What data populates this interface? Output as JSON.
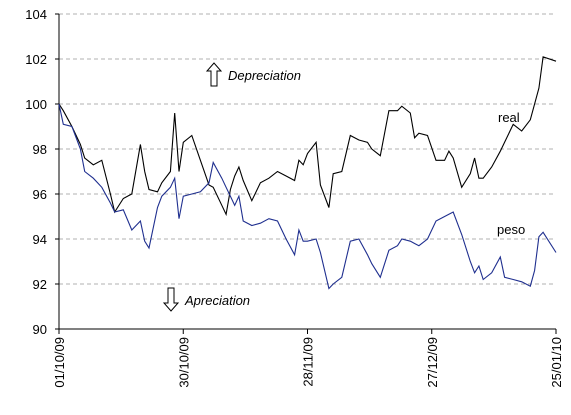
{
  "chart_data": {
    "type": "line",
    "x": [
      "01/10/09",
      "02/10/09",
      "04/10/09",
      "06/10/09",
      "07/10/09",
      "09/10/09",
      "11/10/09",
      "13/10/09",
      "14/10/09",
      "16/10/09",
      "18/10/09",
      "20/10/09",
      "21/10/09",
      "22/10/09",
      "24/10/09",
      "25/10/09",
      "27/10/09",
      "28/10/09",
      "29/10/09",
      "30/10/09",
      "01/11/09",
      "03/11/09",
      "05/11/09",
      "06/11/09",
      "08/11/09",
      "09/11/09",
      "10/11/09",
      "11/11/09",
      "12/11/09",
      "13/11/09",
      "15/11/09",
      "17/11/09",
      "19/11/09",
      "21/11/09",
      "23/11/09",
      "25/11/09",
      "26/11/09",
      "27/11/09",
      "28/11/09",
      "30/11/09",
      "01/12/09",
      "03/12/09",
      "04/12/09",
      "06/12/09",
      "08/12/09",
      "10/12/09",
      "12/12/09",
      "13/12/09",
      "15/12/09",
      "17/12/09",
      "19/12/09",
      "20/12/09",
      "22/12/09",
      "23/12/09",
      "24/12/09",
      "26/12/09",
      "28/12/09",
      "30/12/09",
      "31/12/09",
      "01/01/10",
      "03/01/10",
      "05/01/10",
      "06/01/10",
      "07/01/10",
      "08/01/10",
      "10/01/10",
      "12/01/10",
      "13/01/10",
      "15/01/10",
      "17/01/10",
      "19/01/10",
      "20/01/10",
      "21/01/10",
      "22/01/10",
      "25/01/10"
    ],
    "series": [
      {
        "name": "real",
        "color": "#000000",
        "values": [
          100.0,
          99.7,
          99.0,
          98.2,
          97.6,
          97.3,
          97.5,
          96.0,
          95.2,
          95.8,
          96.0,
          98.2,
          97.0,
          96.2,
          96.1,
          96.5,
          97.0,
          99.6,
          97.0,
          98.3,
          98.6,
          97.5,
          96.4,
          96.3,
          95.5,
          95.1,
          96.2,
          96.8,
          97.2,
          96.6,
          95.7,
          96.5,
          96.7,
          97.0,
          96.8,
          96.6,
          97.5,
          97.3,
          97.8,
          98.3,
          96.4,
          95.4,
          96.9,
          97.0,
          98.6,
          98.4,
          98.3,
          98.0,
          97.7,
          99.7,
          99.7,
          99.9,
          99.6,
          98.5,
          98.7,
          98.6,
          97.5,
          97.5,
          97.9,
          97.6,
          96.3,
          96.9,
          97.6,
          96.7,
          96.7,
          97.2,
          97.9,
          98.3,
          99.1,
          98.8,
          99.3,
          100.0,
          100.7,
          102.1,
          101.9
        ]
      },
      {
        "name": "peso",
        "color": "#1f2f8f",
        "values": [
          100.0,
          99.1,
          99.0,
          98.0,
          97.0,
          96.7,
          96.3,
          95.6,
          95.2,
          95.3,
          94.4,
          94.8,
          93.9,
          93.6,
          95.4,
          95.9,
          96.3,
          96.7,
          94.9,
          95.9,
          96.0,
          96.1,
          96.5,
          97.4,
          96.7,
          96.3,
          95.9,
          95.5,
          95.9,
          94.8,
          94.6,
          94.7,
          94.9,
          94.8,
          94.0,
          93.3,
          94.4,
          93.9,
          93.9,
          94.0,
          93.4,
          91.8,
          92.0,
          92.3,
          93.9,
          94.0,
          93.3,
          92.9,
          92.3,
          93.5,
          93.7,
          94.0,
          93.9,
          93.8,
          93.7,
          94.0,
          94.8,
          95.0,
          95.1,
          95.2,
          94.2,
          93.0,
          92.5,
          92.8,
          92.2,
          92.5,
          93.2,
          92.3,
          92.2,
          92.1,
          91.9,
          92.6,
          94.1,
          94.3,
          93.4
        ]
      }
    ],
    "xlim": [
      "01/10/09",
      "25/01/10"
    ],
    "xticks": [
      "01/10/09",
      "30/10/09",
      "28/11/09",
      "27/12/09",
      "25/01/10"
    ],
    "ylim": [
      90,
      104
    ],
    "yticks": [
      90,
      92,
      94,
      96,
      98,
      100,
      102,
      104
    ],
    "grid": true,
    "annotations": [
      "Depreciation",
      "Apreciation"
    ]
  }
}
